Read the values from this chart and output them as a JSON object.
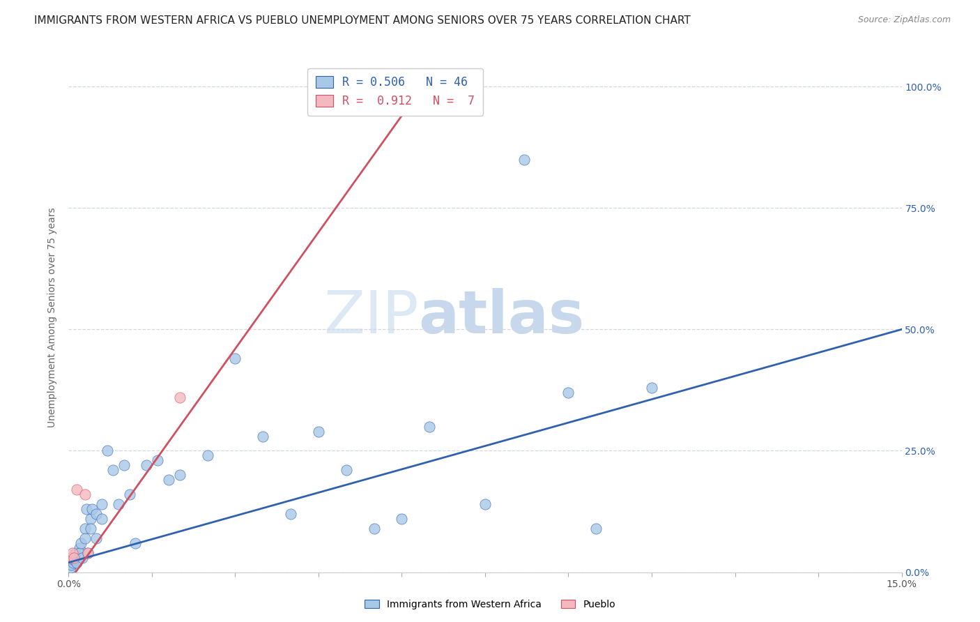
{
  "title": "IMMIGRANTS FROM WESTERN AFRICA VS PUEBLO UNEMPLOYMENT AMONG SENIORS OVER 75 YEARS CORRELATION CHART",
  "source": "Source: ZipAtlas.com",
  "ylabel": "Unemployment Among Seniors over 75 years",
  "legend_blue_r": "0.506",
  "legend_blue_n": "46",
  "legend_pink_r": "0.912",
  "legend_pink_n": "7",
  "legend_label1": "Immigrants from Western Africa",
  "legend_label2": "Pueblo",
  "blue_scatter_x": [
    0.0003,
    0.0005,
    0.0008,
    0.001,
    0.001,
    0.0012,
    0.0015,
    0.002,
    0.002,
    0.0022,
    0.0025,
    0.003,
    0.003,
    0.0032,
    0.0035,
    0.004,
    0.004,
    0.0042,
    0.005,
    0.005,
    0.006,
    0.006,
    0.007,
    0.008,
    0.009,
    0.01,
    0.011,
    0.012,
    0.014,
    0.016,
    0.018,
    0.02,
    0.025,
    0.03,
    0.035,
    0.04,
    0.045,
    0.05,
    0.055,
    0.06,
    0.065,
    0.075,
    0.082,
    0.09,
    0.095,
    0.105
  ],
  "blue_scatter_y": [
    0.01,
    0.015,
    0.02,
    0.03,
    0.025,
    0.04,
    0.02,
    0.05,
    0.04,
    0.06,
    0.03,
    0.09,
    0.07,
    0.13,
    0.04,
    0.11,
    0.09,
    0.13,
    0.12,
    0.07,
    0.14,
    0.11,
    0.25,
    0.21,
    0.14,
    0.22,
    0.16,
    0.06,
    0.22,
    0.23,
    0.19,
    0.2,
    0.24,
    0.44,
    0.28,
    0.12,
    0.29,
    0.21,
    0.09,
    0.11,
    0.3,
    0.14,
    0.85,
    0.37,
    0.09,
    0.38
  ],
  "pink_scatter_x": [
    0.0003,
    0.0007,
    0.001,
    0.0015,
    0.003,
    0.0035,
    0.02
  ],
  "pink_scatter_y": [
    0.03,
    0.04,
    0.03,
    0.17,
    0.16,
    0.04,
    0.36
  ],
  "blue_line_x": [
    0.0,
    0.15
  ],
  "blue_line_y": [
    0.02,
    0.5
  ],
  "pink_line_x": [
    0.0,
    0.065
  ],
  "pink_line_y": [
    -0.02,
    1.02
  ],
  "blue_color": "#a8c8e8",
  "pink_color": "#f4b8c0",
  "blue_line_color": "#3060b0",
  "pink_line_color": "#d05060",
  "watermark_zip": "ZIP",
  "watermark_atlas": "atlas",
  "watermark_color": "#dce8f4",
  "background_color": "#ffffff",
  "grid_color": "#d0d8e4",
  "xlim": [
    0.0,
    0.15
  ],
  "ylim": [
    0.0,
    1.05
  ],
  "ytick_vals": [
    0.0,
    0.25,
    0.5,
    0.75,
    1.0
  ],
  "ytick_labels": [
    "0.0%",
    "25.0%",
    "50.0%",
    "75.0%",
    "100.0%"
  ],
  "xtick_vals": [
    0.0,
    0.015,
    0.03,
    0.045,
    0.06,
    0.075,
    0.09,
    0.105,
    0.12,
    0.135,
    0.15
  ],
  "title_fontsize": 11,
  "source_fontsize": 9
}
